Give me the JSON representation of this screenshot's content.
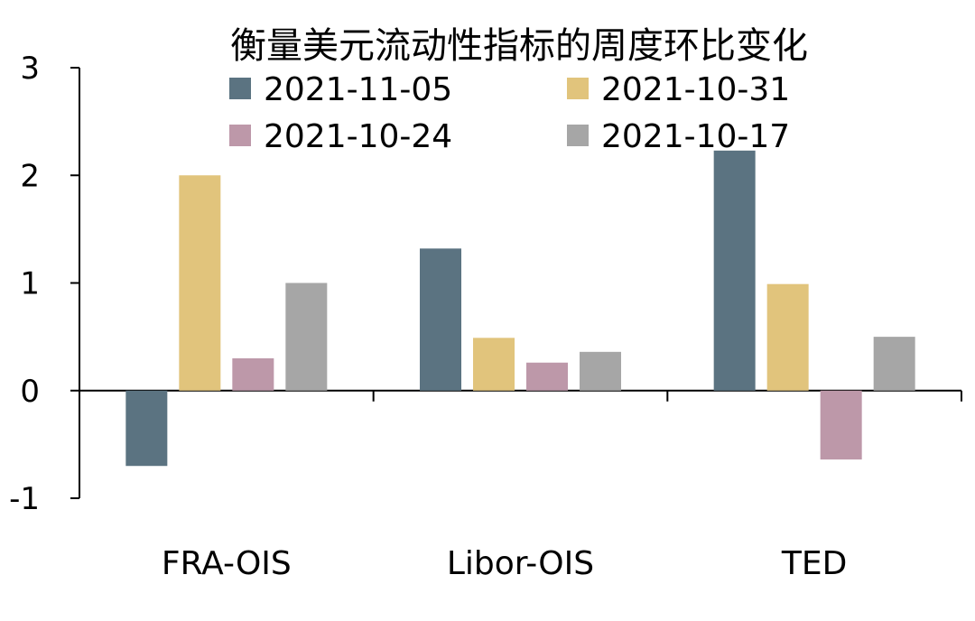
{
  "chart_data": {
    "type": "bar",
    "title": "衡量美元流动性指标的周度环比变化",
    "xlabel": "",
    "ylabel": "",
    "categories": [
      "FRA-OIS",
      "Libor-OIS",
      "TED"
    ],
    "series": [
      {
        "name": "2021-11-05",
        "color": "#5b7381",
        "values": [
          -0.7,
          1.32,
          2.23
        ]
      },
      {
        "name": "2021-10-31",
        "color": "#e1c47c",
        "values": [
          2.0,
          0.49,
          0.99
        ]
      },
      {
        "name": "2021-10-24",
        "color": "#bd98a9",
        "values": [
          0.3,
          0.26,
          -0.64
        ]
      },
      {
        "name": "2021-10-17",
        "color": "#a6a6a6",
        "values": [
          1.0,
          0.36,
          0.5
        ]
      }
    ],
    "ylim": [
      -1,
      3
    ],
    "yticks": [
      "-1",
      "0",
      "1",
      "2",
      "3"
    ],
    "grid": false,
    "legend_position": "top"
  }
}
